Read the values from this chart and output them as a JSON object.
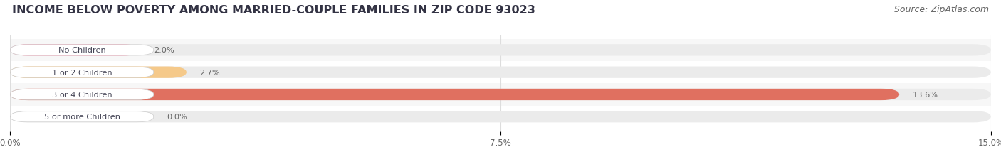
{
  "title": "INCOME BELOW POVERTY AMONG MARRIED-COUPLE FAMILIES IN ZIP CODE 93023",
  "source": "Source: ZipAtlas.com",
  "categories": [
    "No Children",
    "1 or 2 Children",
    "3 or 4 Children",
    "5 or more Children"
  ],
  "values": [
    2.0,
    2.7,
    13.6,
    0.0
  ],
  "bar_colors": [
    "#f5a0b5",
    "#f5c98a",
    "#e07060",
    "#a8c4e8"
  ],
  "xlim": [
    0,
    15.0
  ],
  "xticks": [
    0.0,
    7.5,
    15.0
  ],
  "xtick_labels": [
    "0.0%",
    "7.5%",
    "15.0%"
  ],
  "title_fontsize": 11.5,
  "source_fontsize": 9,
  "bar_height": 0.52,
  "background_color": "#ffffff",
  "bar_bg_color": "#ebebeb",
  "label_bg_color": "#ffffff",
  "text_color": "#444455",
  "value_color": "#666666",
  "grid_color": "#dddddd",
  "row_bg_colors": [
    "#f7f7f7",
    "#ffffff",
    "#f7f7f7",
    "#ffffff"
  ]
}
